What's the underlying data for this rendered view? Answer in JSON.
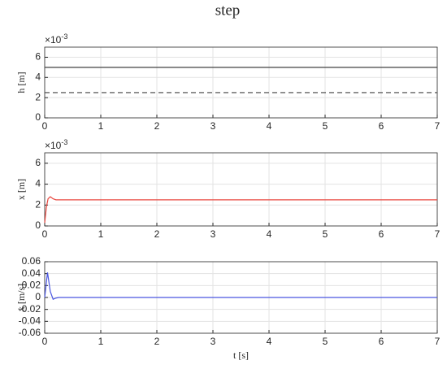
{
  "title": "step",
  "chart_data": [
    {
      "type": "line",
      "ylabel": "h [m]",
      "y_multiplier": {
        "base": "×10",
        "exponent": "-3"
      },
      "xlim": [
        0,
        7
      ],
      "xticks": [
        0,
        1,
        2,
        3,
        4,
        5,
        6,
        7
      ],
      "ylim": [
        0,
        7
      ],
      "yticks": [
        0,
        2,
        4,
        6
      ],
      "grid": true,
      "series": [
        {
          "color": "#404040",
          "style": "solid",
          "x": [
            0,
            7
          ],
          "values": [
            5,
            5
          ]
        },
        {
          "color": "#404040",
          "style": "dashed",
          "x": [
            0,
            7
          ],
          "values": [
            2.5,
            2.5
          ]
        }
      ]
    },
    {
      "type": "line",
      "ylabel": "x [m]",
      "y_multiplier": {
        "base": "×10",
        "exponent": "-3"
      },
      "xlim": [
        0,
        7
      ],
      "xticks": [
        0,
        1,
        2,
        3,
        4,
        5,
        6,
        7
      ],
      "ylim": [
        0,
        7
      ],
      "yticks": [
        0,
        2,
        4,
        6
      ],
      "grid": true,
      "series": [
        {
          "color": "#e8473f",
          "style": "solid",
          "x": [
            0,
            0.03,
            0.06,
            0.1,
            0.15,
            0.2,
            0.3,
            7
          ],
          "values": [
            0.3,
            1.8,
            2.6,
            2.8,
            2.6,
            2.5,
            2.5,
            2.5
          ]
        }
      ]
    },
    {
      "type": "line",
      "ylabel": "ẋ [m/s]",
      "xlabel": "t [s]",
      "xlim": [
        0,
        7
      ],
      "xticks": [
        0,
        1,
        2,
        3,
        4,
        5,
        6,
        7
      ],
      "ylim": [
        -0.06,
        0.06
      ],
      "yticks": [
        -0.06,
        -0.04,
        -0.02,
        0,
        0.02,
        0.04,
        0.06
      ],
      "grid": true,
      "series": [
        {
          "color": "#4a56e0",
          "style": "solid",
          "x": [
            0,
            0.05,
            0.1,
            0.15,
            0.2,
            0.25,
            7
          ],
          "values": [
            0,
            0.042,
            0.01,
            -0.003,
            -0.001,
            0,
            0
          ]
        }
      ]
    }
  ]
}
